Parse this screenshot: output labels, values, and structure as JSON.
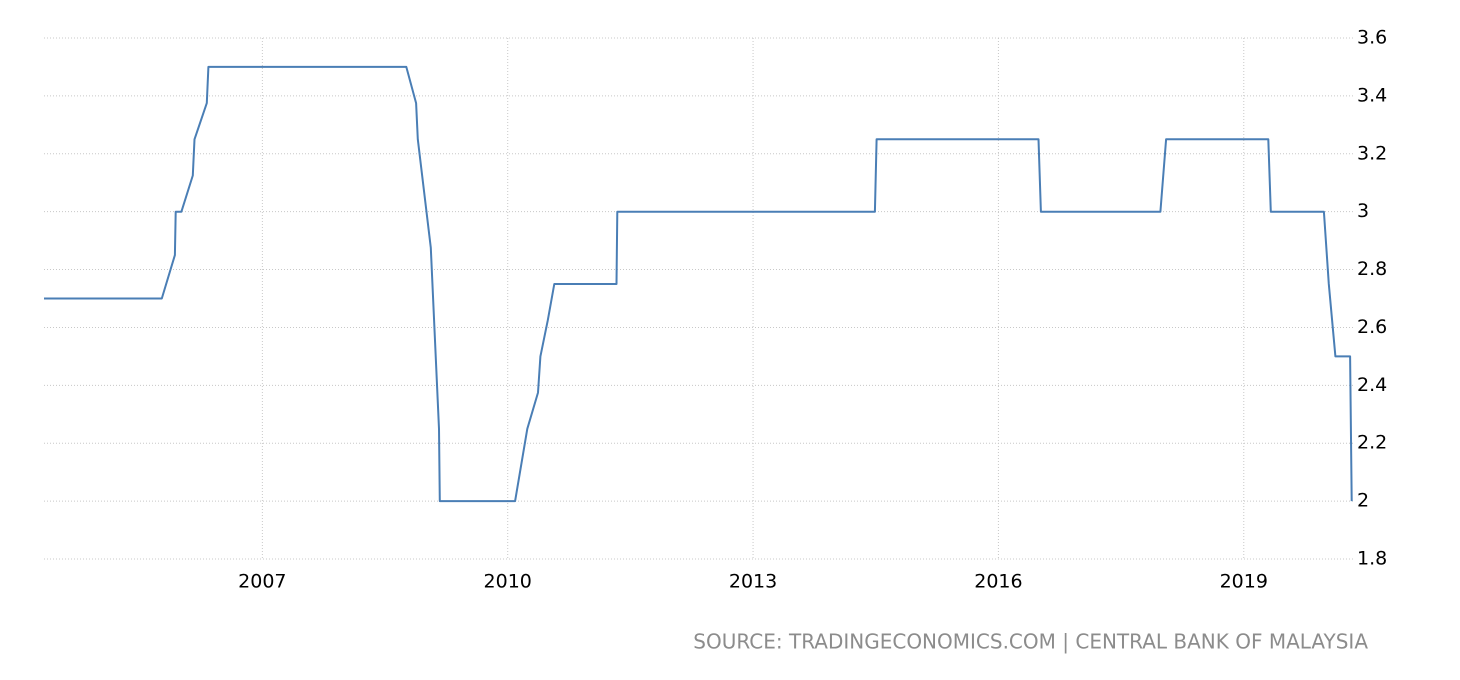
{
  "chart_data": {
    "type": "line",
    "source": "SOURCE: TRADINGECONOMICS.COM | CENTRAL BANK OF MALAYSIA",
    "x": [
      2004.33,
      2005.77,
      2005.93,
      2005.94,
      2006.01,
      2006.15,
      2006.17,
      2006.32,
      2006.34,
      2008.76,
      2008.88,
      2008.9,
      2009.06,
      2009.16,
      2009.17,
      2010.09,
      2010.24,
      2010.37,
      2010.4,
      2010.49,
      2010.57,
      2011.33,
      2011.34,
      2014.49,
      2014.51,
      2016.49,
      2016.52,
      2017.98,
      2018.05,
      2019.3,
      2019.33,
      2019.98,
      2020.04,
      2020.12,
      2020.3,
      2020.32
    ],
    "series": [
      {
        "color": "#4a7eb5",
        "values": [
          2.7,
          2.7,
          2.85,
          3.0,
          3.0,
          3.125,
          3.25,
          3.375,
          3.5,
          3.5,
          3.375,
          3.25,
          2.875,
          2.25,
          2.0,
          2.0,
          2.25,
          2.375,
          2.5,
          2.625,
          2.75,
          2.75,
          3.0,
          3.0,
          3.25,
          3.25,
          3.0,
          3.0,
          3.25,
          3.25,
          3.0,
          3.0,
          2.75,
          2.5,
          2.5,
          2.0
        ]
      }
    ],
    "xlim": [
      2004.33,
      2020.36
    ],
    "xticks": [
      2007,
      2010,
      2013,
      2016,
      2019
    ],
    "ylim": [
      1.8,
      3.6
    ],
    "yticks": [
      1.8,
      2,
      2.2,
      2.4,
      2.6,
      2.8,
      3,
      3.2,
      3.4,
      3.6
    ],
    "grid": true
  }
}
